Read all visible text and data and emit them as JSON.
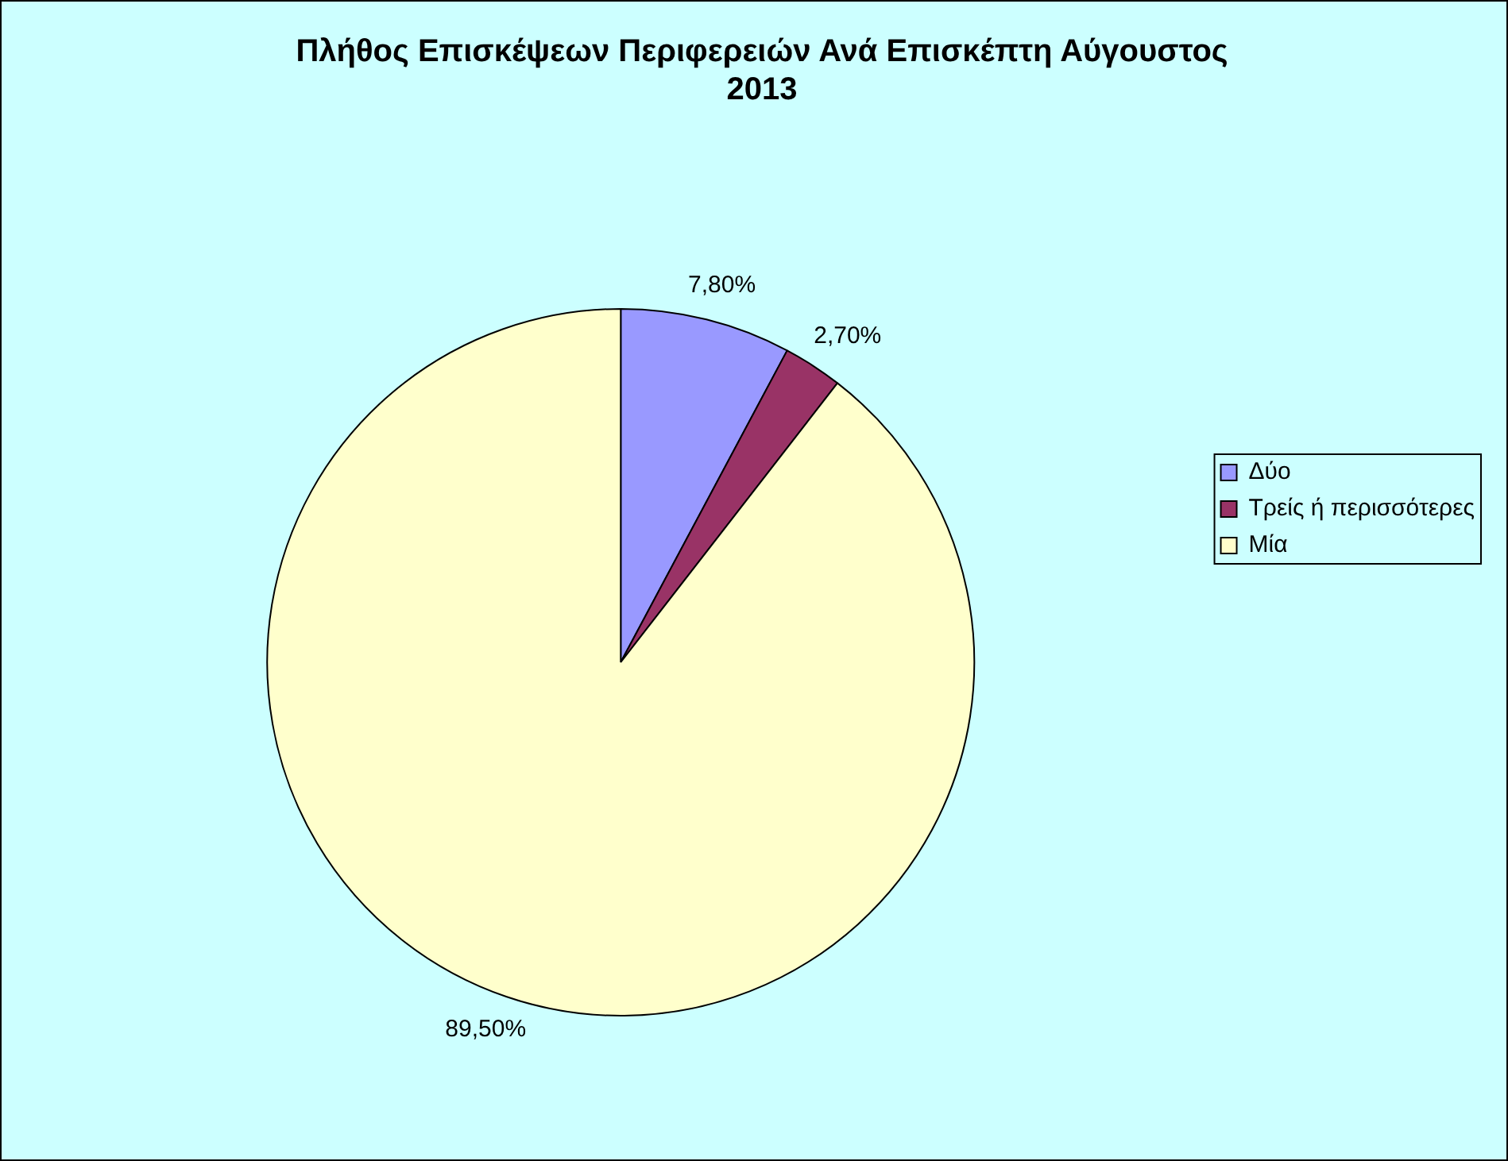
{
  "chart_data": {
    "type": "pie",
    "title": "Πλήθος Επισκέψεων Περιφερειών Ανά Επισκέπτη Αύγουστος 2013",
    "categories": [
      "Δύο",
      "Τρείς ή περισσότερες",
      "Μία"
    ],
    "values": [
      7.8,
      2.7,
      89.5
    ],
    "colors": [
      "#9999ff",
      "#993366",
      "#ffffcc"
    ],
    "value_labels": [
      "7,80%",
      "2,70%",
      "89,50%"
    ],
    "legend": "right"
  }
}
